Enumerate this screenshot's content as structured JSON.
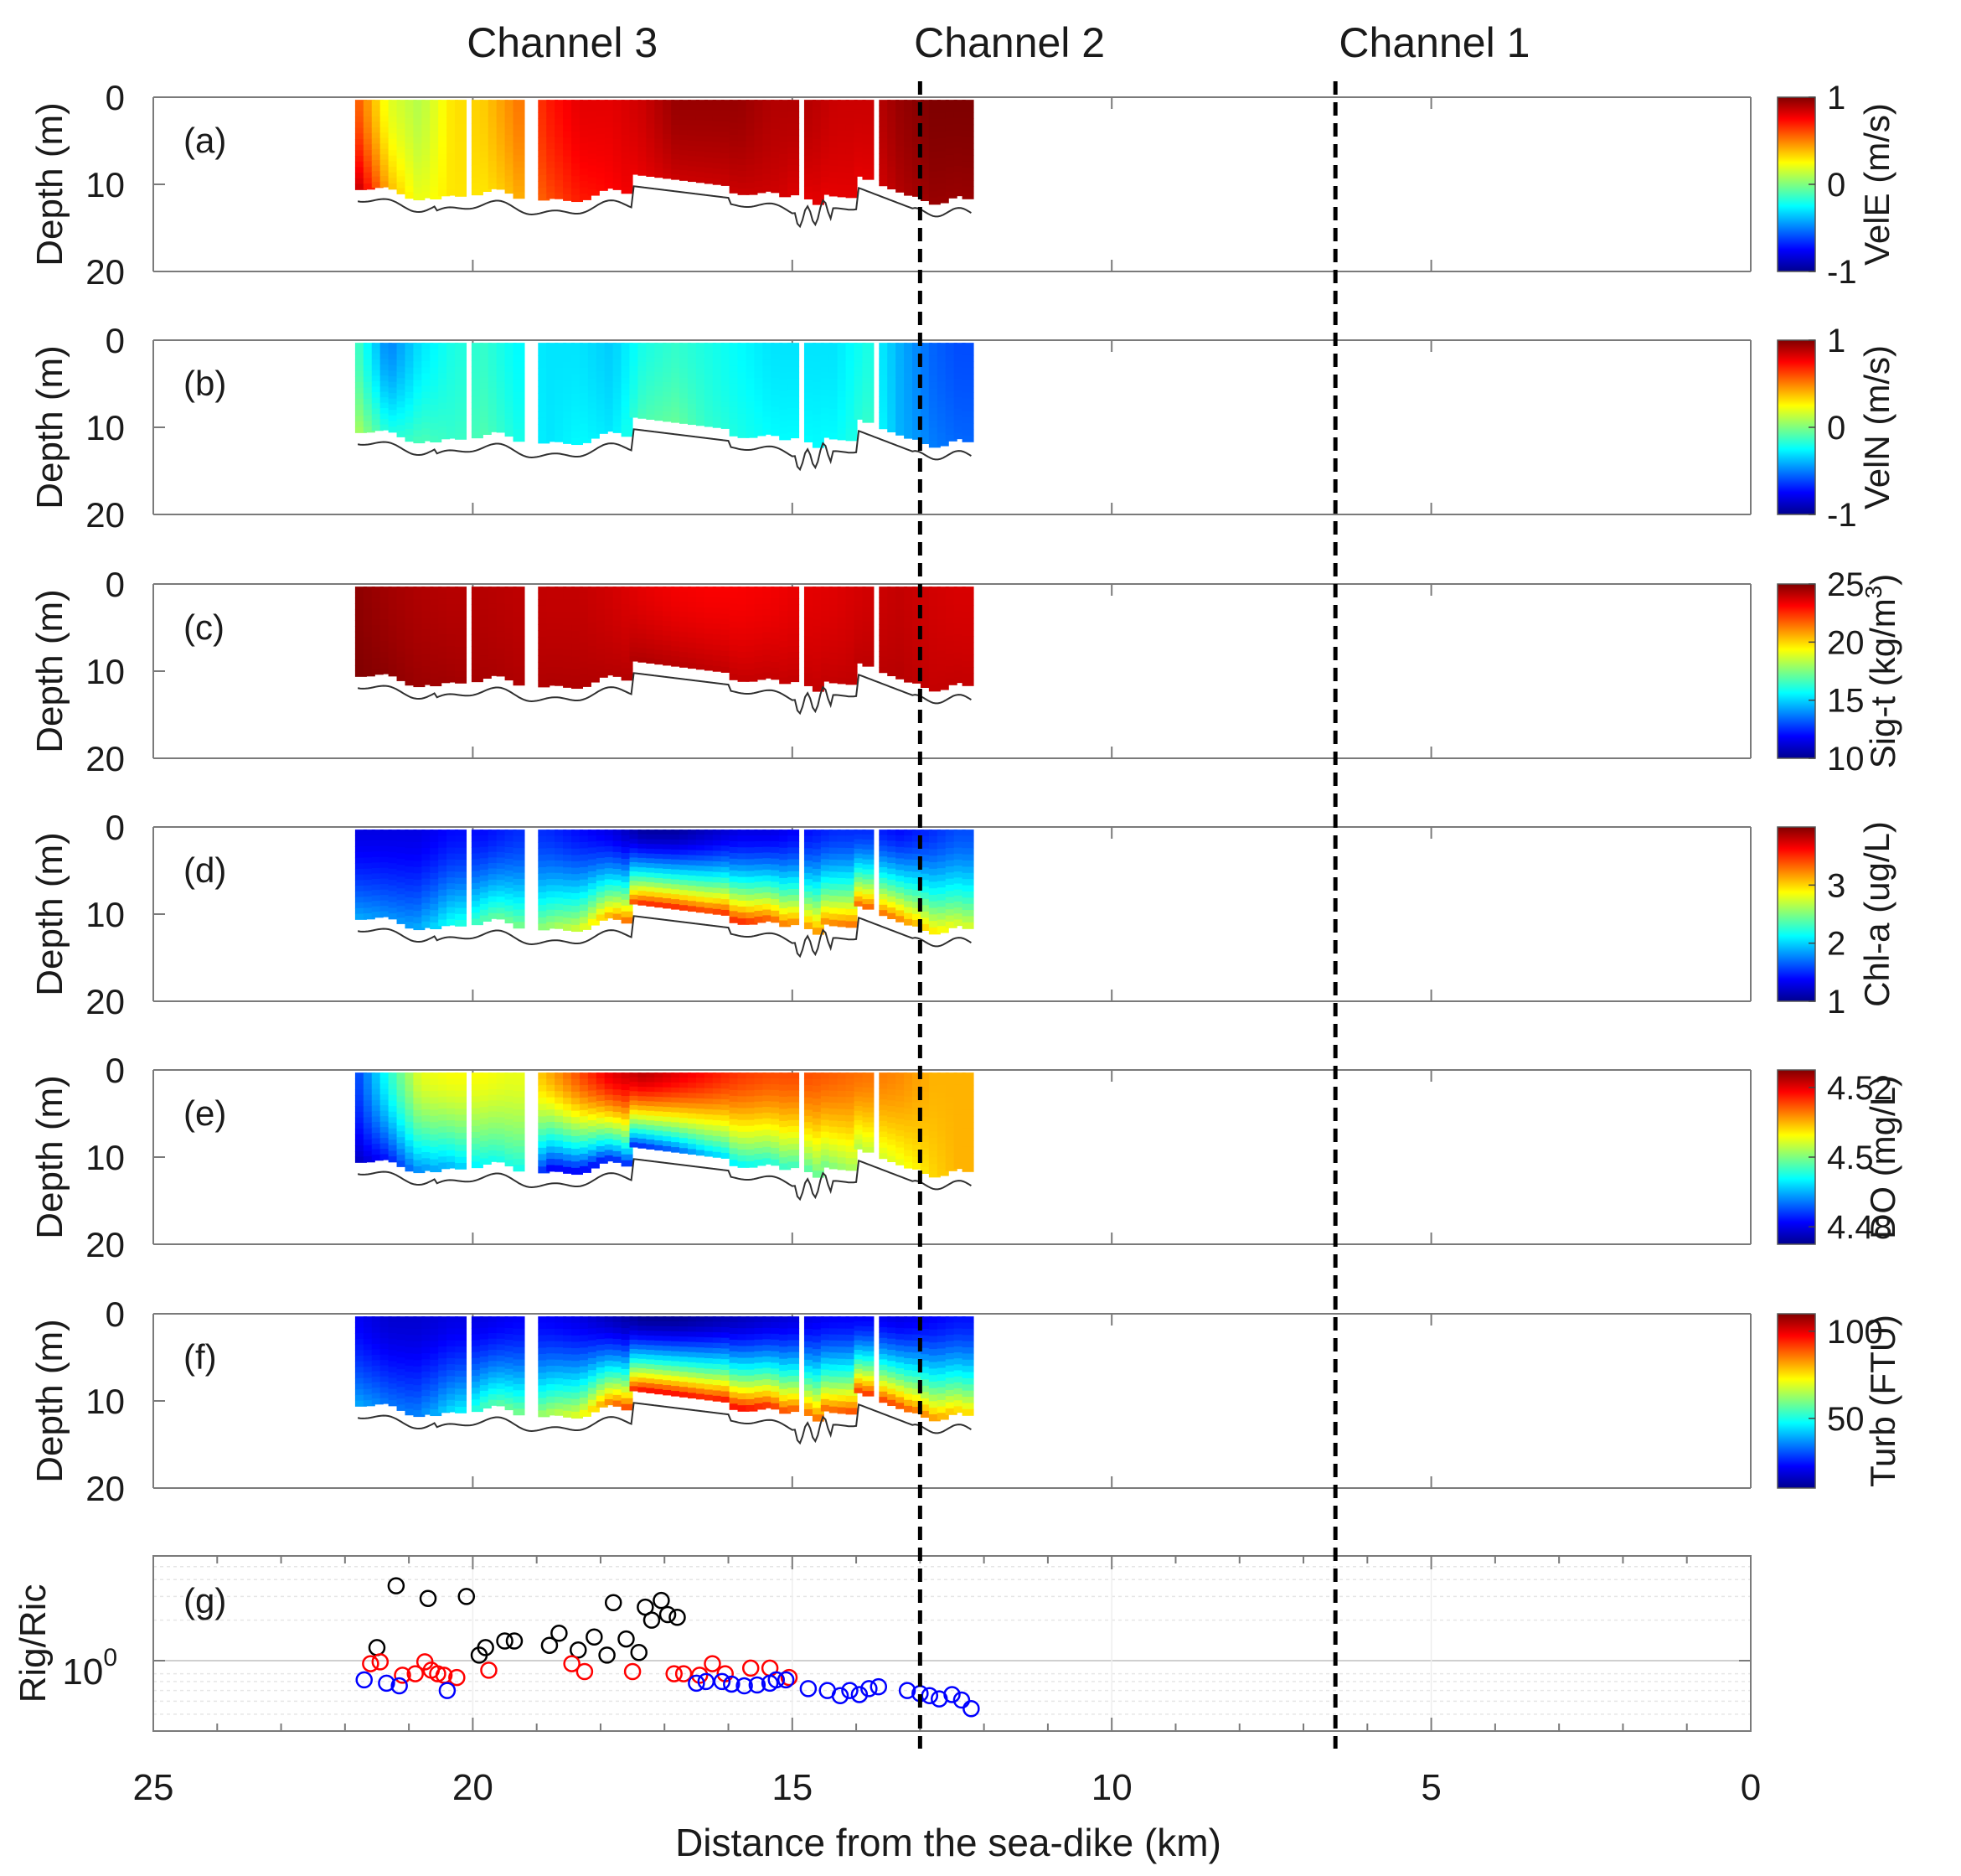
{
  "figure": {
    "channel_labels": [
      "Channel 3",
      "Channel 2",
      "Channel 1"
    ],
    "channel_label_x_km": [
      18.6,
      11.6,
      4.95
    ],
    "divider_x_km": [
      13.0,
      6.5
    ],
    "xlabel": "Distance from the sea-dike (km)",
    "xlim": [
      25,
      0
    ],
    "xticks": [
      25,
      20,
      15,
      10,
      5,
      0
    ],
    "xtick_labels": [
      "25",
      "20",
      "15",
      "10",
      "5",
      "0"
    ],
    "depth_ylabel": "Depth (m)",
    "depth_ylim": [
      0,
      20
    ],
    "depth_ticks": [
      0,
      10,
      20
    ],
    "depth_tick_labels": [
      "0",
      "10",
      "20"
    ],
    "colormap": "jet"
  },
  "chart_data": [
    {
      "type": "heatmap",
      "panel": "(a)",
      "variable": "VelE",
      "colorbar_label": "VelE (m/s)",
      "clim": [
        -1,
        1
      ],
      "colorbar_ticks": [
        -1,
        0,
        1
      ],
      "colorbar_tick_labels": [
        "-1",
        "0",
        "1"
      ],
      "xlabel": "",
      "ylabel": "Depth (m)",
      "profile_x_km": [
        21.8,
        21.3,
        20.8,
        20.3,
        19.8,
        19.3,
        18.8,
        18.3,
        17.8,
        17.3,
        16.8,
        16.3,
        15.8,
        15.3,
        14.8,
        14.3,
        13.8,
        13.3,
        12.8,
        12.4
      ],
      "surface_value": [
        0.6,
        0.2,
        0.1,
        0.3,
        0.35,
        0.5,
        0.7,
        0.8,
        0.8,
        0.85,
        0.95,
        0.95,
        0.95,
        0.9,
        0.9,
        0.85,
        0.85,
        0.95,
        1.0,
        1.0
      ],
      "bottom_value": [
        0.9,
        0.4,
        0.2,
        0.3,
        0.3,
        0.4,
        0.6,
        0.7,
        0.75,
        0.8,
        0.85,
        0.85,
        0.85,
        0.85,
        0.8,
        0.8,
        0.8,
        0.9,
        0.95,
        0.95
      ]
    },
    {
      "type": "heatmap",
      "panel": "(b)",
      "variable": "VelN",
      "colorbar_label": "VelN (m/s)",
      "clim": [
        -1,
        1
      ],
      "colorbar_ticks": [
        -1,
        0,
        1
      ],
      "colorbar_tick_labels": [
        "-1",
        "0",
        "1"
      ],
      "xlabel": "",
      "ylabel": "Depth (m)",
      "profile_x_km": [
        21.8,
        21.3,
        20.8,
        20.3,
        19.8,
        19.3,
        18.8,
        18.3,
        17.8,
        17.3,
        16.8,
        16.3,
        15.8,
        15.3,
        14.8,
        14.3,
        13.8,
        13.3,
        12.8,
        12.4
      ],
      "surface_value": [
        -0.1,
        -0.5,
        -0.3,
        -0.2,
        -0.15,
        -0.25,
        -0.3,
        -0.3,
        -0.35,
        -0.2,
        -0.15,
        -0.2,
        -0.25,
        -0.3,
        -0.3,
        -0.3,
        -0.2,
        -0.4,
        -0.55,
        -0.6
      ],
      "bottom_value": [
        0.1,
        -0.2,
        -0.1,
        -0.15,
        -0.1,
        -0.2,
        -0.3,
        -0.25,
        -0.3,
        -0.1,
        -0.05,
        -0.15,
        -0.2,
        -0.25,
        -0.25,
        -0.25,
        -0.15,
        -0.4,
        -0.5,
        -0.55
      ]
    },
    {
      "type": "heatmap",
      "panel": "(c)",
      "variable": "Sig-t",
      "colorbar_label": "Sig-t (kg/m3)",
      "clim": [
        10,
        25
      ],
      "colorbar_ticks": [
        10,
        15,
        20,
        25
      ],
      "colorbar_tick_labels": [
        "10",
        "15",
        "20",
        "25"
      ],
      "xlabel": "",
      "ylabel": "Depth (m)",
      "profile_x_km": [
        21.8,
        21.3,
        20.8,
        20.3,
        19.8,
        19.3,
        18.8,
        18.3,
        17.8,
        17.3,
        16.8,
        16.3,
        15.8,
        15.3,
        14.8,
        14.3,
        13.8,
        13.3,
        12.8,
        12.4
      ],
      "surface_value": [
        24.8,
        24.5,
        24.3,
        24.2,
        24.2,
        24.1,
        24.0,
        24.0,
        23.8,
        23.5,
        23.3,
        23.2,
        23.2,
        23.3,
        23.5,
        23.6,
        23.8,
        24.0,
        23.8,
        23.7
      ],
      "bottom_value": [
        25.0,
        24.8,
        24.6,
        24.5,
        24.4,
        24.3,
        24.3,
        24.3,
        24.2,
        24.3,
        24.2,
        24.1,
        24.0,
        24.0,
        24.0,
        24.0,
        24.1,
        24.2,
        24.0,
        24.0
      ]
    },
    {
      "type": "heatmap",
      "panel": "(d)",
      "variable": "Chl-a",
      "colorbar_label": "Chl-a (ug/L)",
      "clim": [
        1,
        4
      ],
      "colorbar_ticks": [
        1,
        2,
        3
      ],
      "colorbar_tick_labels": [
        "1",
        "2",
        "3"
      ],
      "xlabel": "",
      "ylabel": "Depth (m)",
      "profile_x_km": [
        21.8,
        21.3,
        20.8,
        20.3,
        19.8,
        19.3,
        18.8,
        18.3,
        17.8,
        17.3,
        16.8,
        16.3,
        15.8,
        15.3,
        14.8,
        14.3,
        13.8,
        13.3,
        12.8,
        12.4
      ],
      "surface_value": [
        1.3,
        1.3,
        1.3,
        1.4,
        1.4,
        1.5,
        1.5,
        1.4,
        1.3,
        1.1,
        1.1,
        1.2,
        1.3,
        1.3,
        1.4,
        1.5,
        1.5,
        1.4,
        1.5,
        1.6
      ],
      "bottom_value": [
        1.9,
        1.8,
        1.9,
        2.2,
        2.4,
        2.5,
        2.6,
        2.8,
        3.2,
        3.6,
        3.6,
        3.5,
        3.6,
        3.4,
        3.2,
        3.3,
        3.4,
        3.3,
        3.0,
        2.8
      ]
    },
    {
      "type": "heatmap",
      "panel": "(e)",
      "variable": "DO",
      "colorbar_label": "DO (mg/L)",
      "clim": [
        4.475,
        4.525
      ],
      "colorbar_ticks": [
        4.48,
        4.5,
        4.52
      ],
      "colorbar_tick_labels": [
        "4.48",
        "4.5",
        "4.52"
      ],
      "xlabel": "",
      "ylabel": "Depth (m)",
      "profile_x_km": [
        21.8,
        21.3,
        20.8,
        20.3,
        19.8,
        19.3,
        18.8,
        18.3,
        17.8,
        17.3,
        16.8,
        16.3,
        15.8,
        15.3,
        14.8,
        14.3,
        13.8,
        13.3,
        12.8,
        12.4
      ],
      "surface_value": [
        4.484,
        4.495,
        4.505,
        4.506,
        4.506,
        4.505,
        4.51,
        4.515,
        4.52,
        4.522,
        4.52,
        4.518,
        4.516,
        4.515,
        4.515,
        4.514,
        4.513,
        4.512,
        4.51,
        4.51
      ],
      "bottom_value": [
        4.478,
        4.482,
        4.488,
        4.49,
        4.494,
        4.495,
        4.48,
        4.48,
        4.482,
        4.482,
        4.485,
        4.49,
        4.493,
        4.495,
        4.497,
        4.5,
        4.503,
        4.505,
        4.508,
        4.51
      ]
    },
    {
      "type": "heatmap",
      "panel": "(f)",
      "variable": "Turb",
      "colorbar_label": "Turb (FTU)",
      "clim": [
        10,
        110
      ],
      "colorbar_ticks": [
        50,
        100
      ],
      "colorbar_tick_labels": [
        "50",
        "100"
      ],
      "xlabel": "",
      "ylabel": "Depth (m)",
      "profile_x_km": [
        21.8,
        21.3,
        20.8,
        20.3,
        19.8,
        19.3,
        18.8,
        18.3,
        17.8,
        17.3,
        16.8,
        16.3,
        15.8,
        15.3,
        14.8,
        14.3,
        13.8,
        13.3,
        12.8,
        12.4
      ],
      "surface_value": [
        22,
        18,
        18,
        20,
        20,
        22,
        22,
        20,
        16,
        12,
        12,
        14,
        16,
        18,
        20,
        22,
        22,
        20,
        22,
        24
      ],
      "bottom_value": [
        40,
        34,
        36,
        45,
        55,
        60,
        65,
        72,
        88,
        100,
        100,
        97,
        100,
        95,
        88,
        90,
        95,
        92,
        85,
        78
      ]
    },
    {
      "type": "scatter",
      "panel": "(g)",
      "ylabel": "Rig/Ric",
      "yscale": "log",
      "ylim": [
        0.3,
        6
      ],
      "ytick_value": 1,
      "ytick_base": "10",
      "ytick_exponent": "0",
      "series": [
        {
          "name": "black",
          "color": "#000000",
          "x": [
            21.2,
            21.5,
            20.7,
            20.1,
            19.9,
            19.8,
            19.5,
            19.35,
            18.8,
            18.65,
            18.35,
            18.1,
            17.9,
            17.8,
            17.6,
            17.4,
            17.3,
            17.2,
            17.05,
            16.95,
            16.8
          ],
          "y": [
            3.6,
            1.25,
            2.9,
            3.0,
            1.1,
            1.25,
            1.4,
            1.4,
            1.3,
            1.6,
            1.2,
            1.5,
            1.1,
            2.7,
            1.45,
            1.15,
            2.5,
            2.0,
            2.8,
            2.2,
            2.1
          ]
        },
        {
          "name": "red",
          "color": "#ff0000",
          "x": [
            21.6,
            21.45,
            21.1,
            20.9,
            20.75,
            20.65,
            20.55,
            20.45,
            20.25,
            19.75,
            18.45,
            18.25,
            17.5,
            16.85,
            16.7,
            16.45,
            16.25,
            16.05,
            15.65,
            15.35,
            15.05
          ],
          "y": [
            0.95,
            0.98,
            0.78,
            0.8,
            0.98,
            0.85,
            0.8,
            0.78,
            0.75,
            0.85,
            0.95,
            0.83,
            0.83,
            0.8,
            0.8,
            0.78,
            0.95,
            0.8,
            0.88,
            0.88,
            0.75
          ]
        },
        {
          "name": "blue",
          "color": "#0000ff",
          "x": [
            21.7,
            21.35,
            21.15,
            20.4,
            16.5,
            16.35,
            16.1,
            15.95,
            15.75,
            15.55,
            15.35,
            15.25,
            15.1,
            14.75,
            14.45,
            14.25,
            14.1,
            13.95,
            13.8,
            13.65,
            13.2,
            13.0,
            12.85,
            12.7,
            12.5,
            12.35,
            12.2
          ],
          "y": [
            0.72,
            0.68,
            0.65,
            0.6,
            0.68,
            0.7,
            0.7,
            0.67,
            0.65,
            0.66,
            0.68,
            0.72,
            0.72,
            0.62,
            0.6,
            0.55,
            0.6,
            0.56,
            0.62,
            0.64,
            0.6,
            0.57,
            0.55,
            0.52,
            0.56,
            0.51,
            0.44
          ]
        }
      ]
    }
  ]
}
